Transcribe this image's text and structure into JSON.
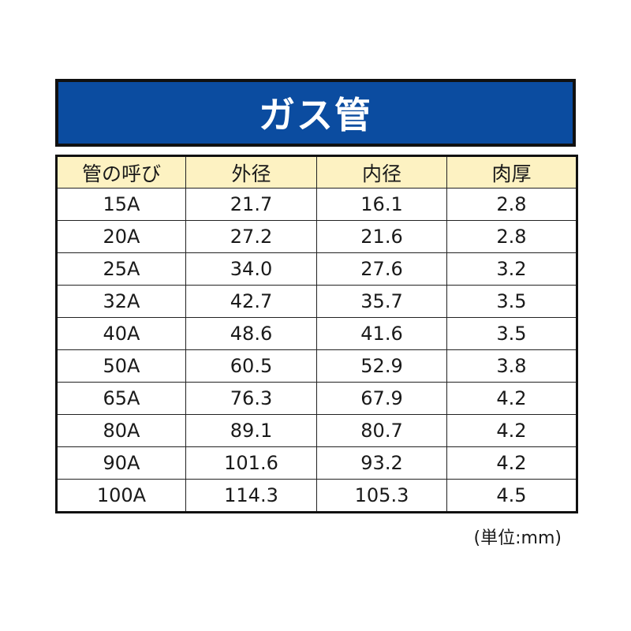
{
  "banner": {
    "title": "ガス管",
    "background_color": "#0b4ca0",
    "text_color": "#ffffff"
  },
  "table": {
    "header_color": "#fdf2c2",
    "headers": [
      "管の呼び",
      "外径",
      "内径",
      "肉厚"
    ],
    "rows": [
      [
        "15A",
        "21.7",
        "16.1",
        "2.8"
      ],
      [
        "20A",
        "27.2",
        "21.6",
        "2.8"
      ],
      [
        "25A",
        "34.0",
        "27.6",
        "3.2"
      ],
      [
        "32A",
        "42.7",
        "35.7",
        "3.5"
      ],
      [
        "40A",
        "48.6",
        "41.6",
        "3.5"
      ],
      [
        "50A",
        "60.5",
        "52.9",
        "3.8"
      ],
      [
        "65A",
        "76.3",
        "67.9",
        "4.2"
      ],
      [
        "80A",
        "89.1",
        "80.7",
        "4.2"
      ],
      [
        "90A",
        "101.6",
        "93.2",
        "4.2"
      ],
      [
        "100A",
        "114.3",
        "105.3",
        "4.5"
      ]
    ]
  },
  "unit_note": "(単位:mm)"
}
